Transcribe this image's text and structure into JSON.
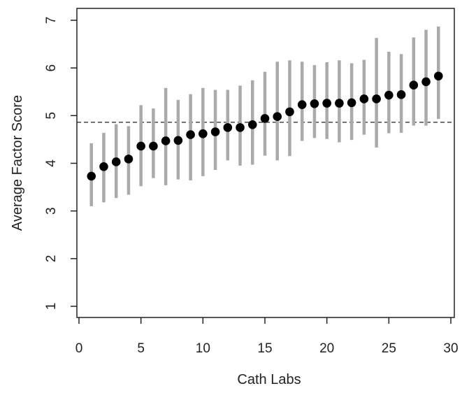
{
  "chart_data": {
    "type": "scatter",
    "title": "",
    "xlabel": "Cath Labs",
    "ylabel": "Average Factor Score",
    "xlim": [
      0,
      30
    ],
    "ylim": [
      0.8,
      7.2
    ],
    "xticks": [
      0,
      5,
      10,
      15,
      20,
      25,
      30
    ],
    "yticks": [
      1,
      2,
      3,
      4,
      5,
      6,
      7
    ],
    "xtick_labels": [
      "0",
      "5",
      "10",
      "15",
      "20",
      "25",
      "30"
    ],
    "ytick_labels": [
      "1",
      "2",
      "3",
      "4",
      "5",
      "6",
      "7"
    ],
    "reference_line": {
      "y": 4.86,
      "style": "dashed"
    },
    "grid": false,
    "legend": "none",
    "colors": {
      "point": "#000000",
      "interval": "#aaaaaa",
      "axis": "#222222",
      "reference_line": "#222222"
    },
    "points": [
      {
        "x": 1,
        "y": 3.73,
        "lower": 3.1,
        "upper": 4.42
      },
      {
        "x": 2,
        "y": 3.93,
        "lower": 3.18,
        "upper": 4.64
      },
      {
        "x": 3,
        "y": 4.03,
        "lower": 3.27,
        "upper": 4.82
      },
      {
        "x": 4,
        "y": 4.09,
        "lower": 3.34,
        "upper": 4.78
      },
      {
        "x": 5,
        "y": 4.36,
        "lower": 3.52,
        "upper": 5.22
      },
      {
        "x": 6,
        "y": 4.36,
        "lower": 3.69,
        "upper": 5.15
      },
      {
        "x": 7,
        "y": 4.47,
        "lower": 3.54,
        "upper": 5.58
      },
      {
        "x": 8,
        "y": 4.48,
        "lower": 3.66,
        "upper": 5.33
      },
      {
        "x": 9,
        "y": 4.6,
        "lower": 3.64,
        "upper": 5.45
      },
      {
        "x": 10,
        "y": 4.62,
        "lower": 3.73,
        "upper": 5.58
      },
      {
        "x": 11,
        "y": 4.66,
        "lower": 3.86,
        "upper": 5.54
      },
      {
        "x": 12,
        "y": 4.75,
        "lower": 4.06,
        "upper": 5.54
      },
      {
        "x": 13,
        "y": 4.75,
        "lower": 3.95,
        "upper": 5.63
      },
      {
        "x": 14,
        "y": 4.81,
        "lower": 3.97,
        "upper": 5.74
      },
      {
        "x": 15,
        "y": 4.94,
        "lower": 4.16,
        "upper": 5.92
      },
      {
        "x": 16,
        "y": 4.98,
        "lower": 4.06,
        "upper": 6.13
      },
      {
        "x": 17,
        "y": 5.08,
        "lower": 4.15,
        "upper": 6.16
      },
      {
        "x": 18,
        "y": 5.23,
        "lower": 4.47,
        "upper": 6.13
      },
      {
        "x": 19,
        "y": 5.25,
        "lower": 4.53,
        "upper": 6.06
      },
      {
        "x": 20,
        "y": 5.26,
        "lower": 4.51,
        "upper": 6.12
      },
      {
        "x": 21,
        "y": 5.26,
        "lower": 4.44,
        "upper": 6.16
      },
      {
        "x": 22,
        "y": 5.27,
        "lower": 4.49,
        "upper": 6.1
      },
      {
        "x": 23,
        "y": 5.35,
        "lower": 4.6,
        "upper": 6.17
      },
      {
        "x": 24,
        "y": 5.35,
        "lower": 4.33,
        "upper": 6.63
      },
      {
        "x": 25,
        "y": 5.43,
        "lower": 4.63,
        "upper": 6.34
      },
      {
        "x": 26,
        "y": 5.44,
        "lower": 4.64,
        "upper": 6.29
      },
      {
        "x": 27,
        "y": 5.64,
        "lower": 4.79,
        "upper": 6.64
      },
      {
        "x": 28,
        "y": 5.71,
        "lower": 4.79,
        "upper": 6.8
      },
      {
        "x": 29,
        "y": 5.83,
        "lower": 4.93,
        "upper": 6.87
      }
    ]
  }
}
